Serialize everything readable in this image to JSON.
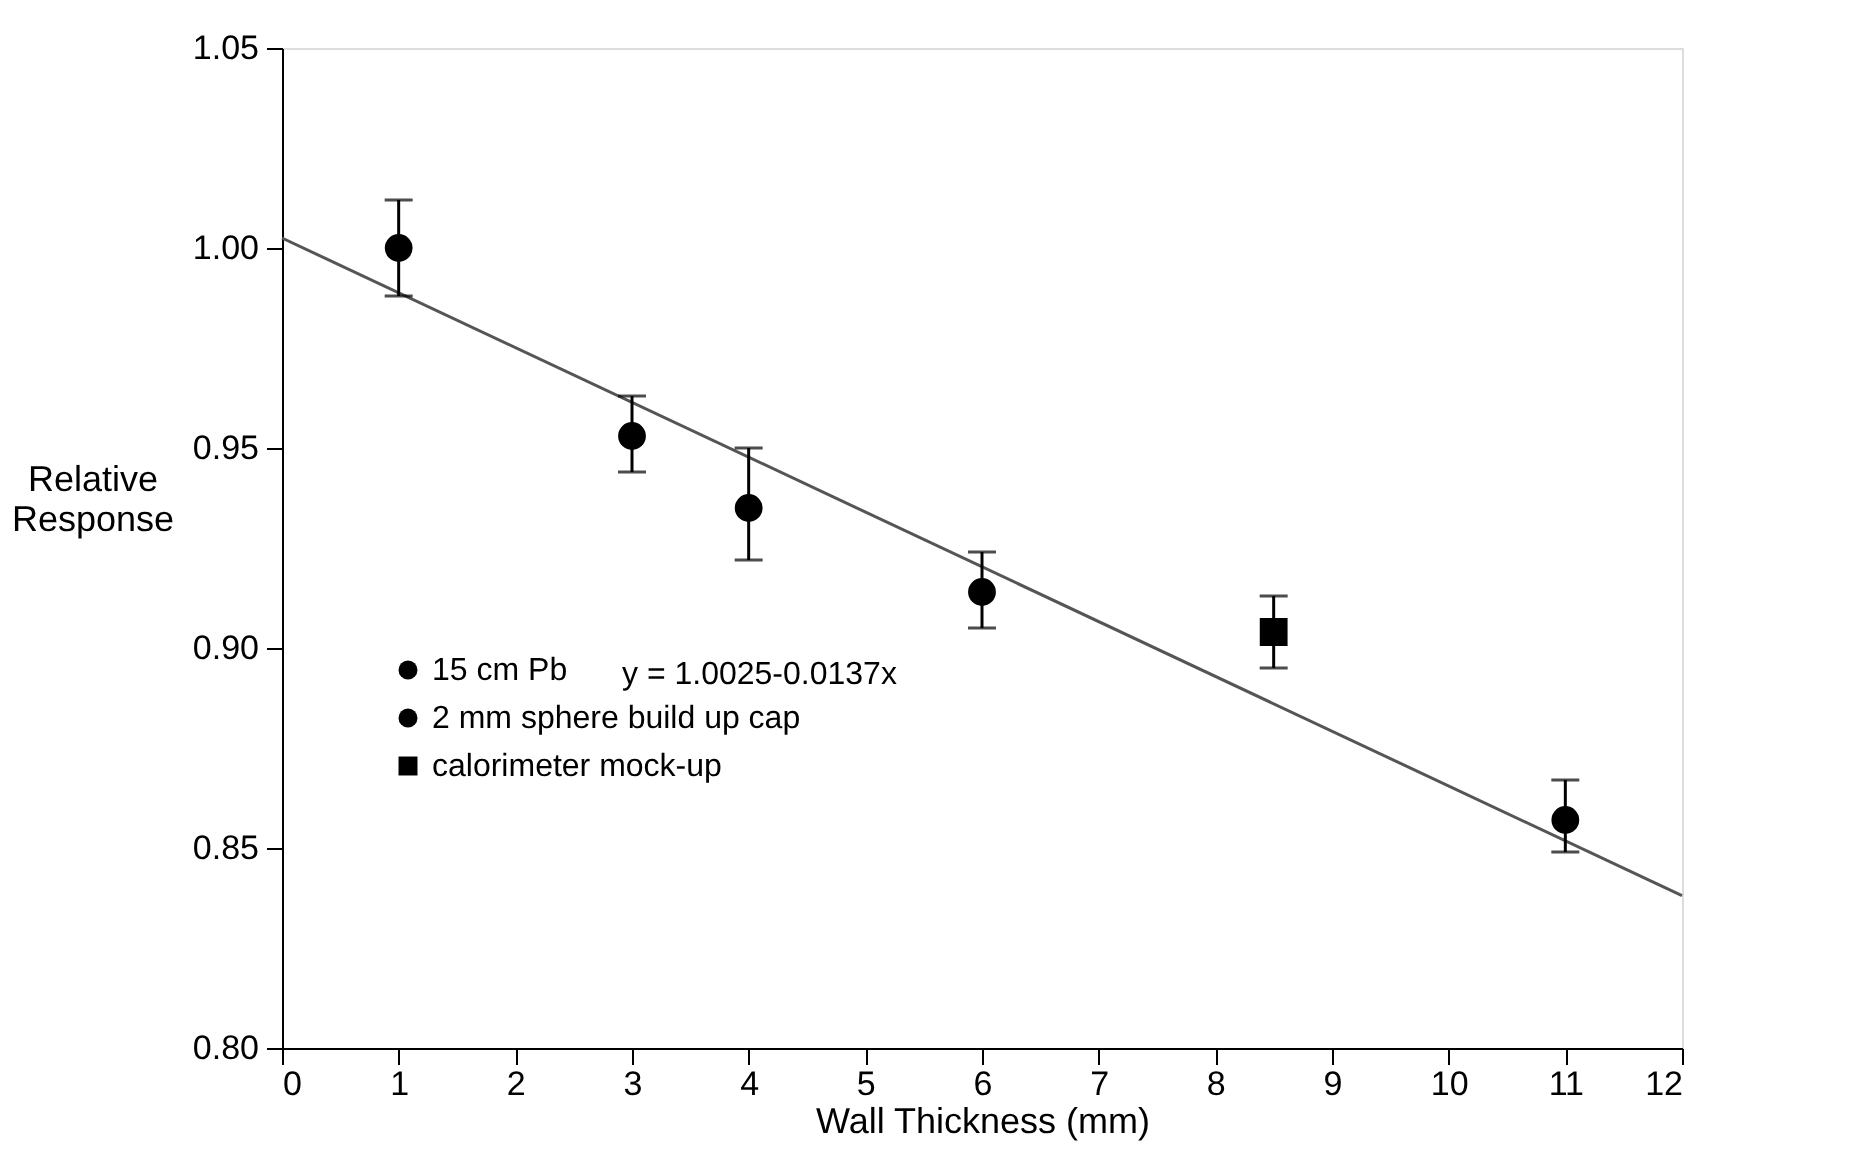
{
  "chart_data": {
    "type": "scatter",
    "xlabel": "Wall Thickness (mm)",
    "ylabel": "Relative Response",
    "xlim": [
      0,
      12
    ],
    "xticks": [
      0,
      1,
      2,
      3,
      4,
      5,
      6,
      7,
      8,
      9,
      10,
      11,
      12
    ],
    "ylim": [
      0.8,
      1.05
    ],
    "yticks": [
      {
        "value": 0.8,
        "label": "0.80"
      },
      {
        "value": 0.85,
        "label": "0.85"
      },
      {
        "value": 0.9,
        "label": "0.90"
      },
      {
        "value": 0.95,
        "label": "0.95"
      },
      {
        "value": 1.0,
        "label": "1.00"
      },
      {
        "value": 1.05,
        "label": "1.05"
      }
    ],
    "grid": false,
    "legend": "bottom left",
    "annotations": [
      "y = 1.0025-0.0137x"
    ],
    "series": [
      {
        "name": "15 cm Pb",
        "color": "#000000",
        "marker": "circle",
        "x": [
          3
        ],
        "values": [
          0.953
        ],
        "errors": [
          [
            0.944,
            0.963
          ]
        ]
      },
      {
        "name": "2 mm sphere build up cap",
        "color": "#000000",
        "marker": "circle",
        "x": [
          1,
          4,
          6,
          11
        ],
        "values": [
          1.0,
          0.935,
          0.914,
          0.857
        ],
        "errors": [
          [
            0.988,
            1.012
          ],
          [
            0.922,
            0.95
          ],
          [
            0.905,
            0.924
          ],
          [
            0.849,
            0.867
          ]
        ]
      },
      {
        "name": "calorimeter mock-up",
        "color": "#000000",
        "marker": "square",
        "x": [
          8.5
        ],
        "values": [
          0.904
        ],
        "errors": [
          [
            0.895,
            0.913
          ]
        ]
      },
      {
        "type": "line",
        "color": "#555555",
        "x": [
          0,
          12
        ],
        "values": [
          1.0025,
          0.8381
        ]
      }
    ]
  }
}
